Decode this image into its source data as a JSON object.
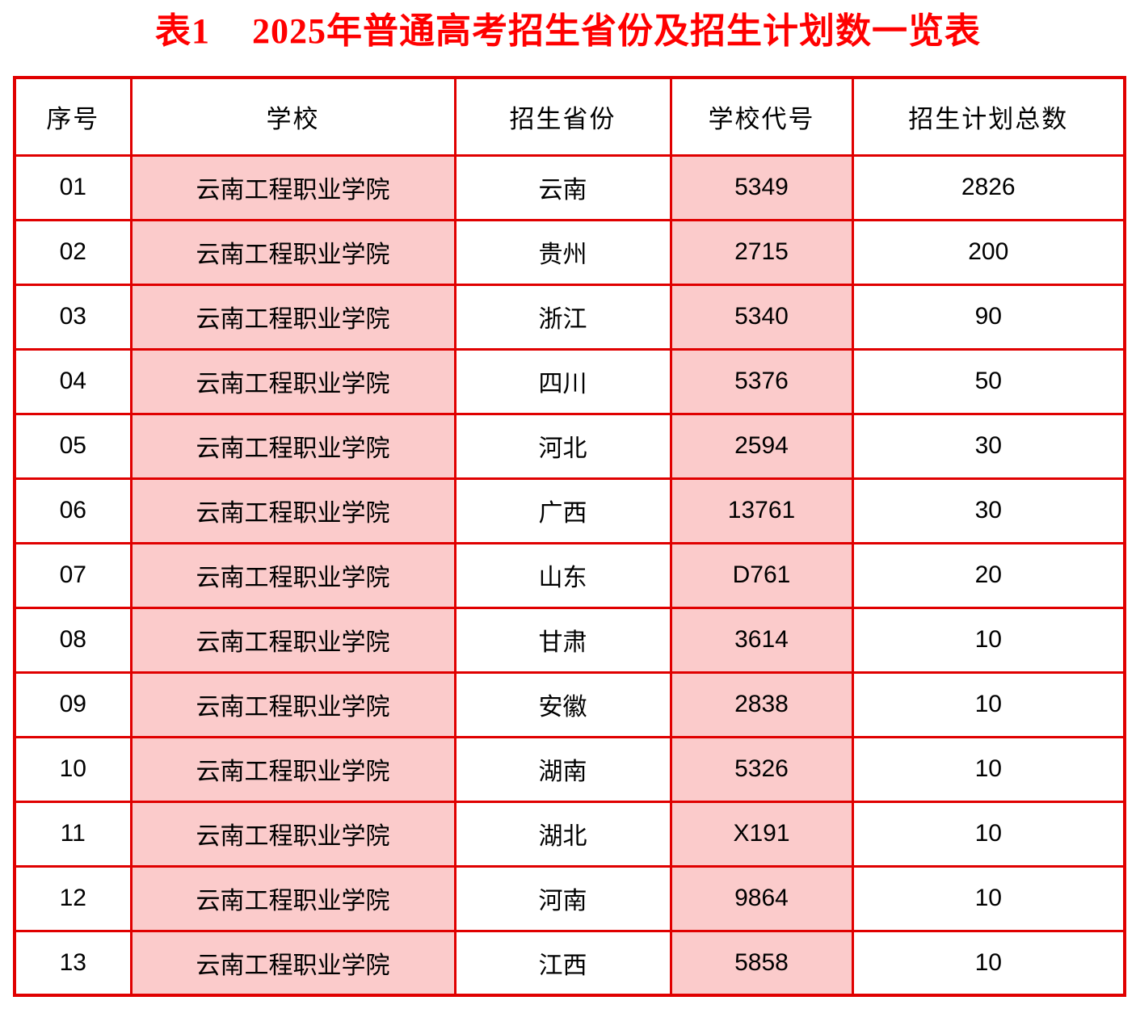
{
  "title": {
    "part1": "表1",
    "part2": "2025年普通高考招生省份及招生计划数一览表"
  },
  "colors": {
    "title_red": "#ff0000",
    "border_red": "#e00000",
    "highlight_pink": "#fbcbcb",
    "text": "#000000",
    "background": "#ffffff"
  },
  "table": {
    "headers": [
      "序号",
      "学校",
      "招生省份",
      "学校代号",
      "招生计划总数"
    ],
    "highlight_col_indices": [
      1,
      3
    ],
    "numeric_col_indices": [
      0,
      3,
      4
    ],
    "rows": [
      [
        "01",
        "云南工程职业学院",
        "云南",
        "5349",
        "2826"
      ],
      [
        "02",
        "云南工程职业学院",
        "贵州",
        "2715",
        "200"
      ],
      [
        "03",
        "云南工程职业学院",
        "浙江",
        "5340",
        "90"
      ],
      [
        "04",
        "云南工程职业学院",
        "四川",
        "5376",
        "50"
      ],
      [
        "05",
        "云南工程职业学院",
        "河北",
        "2594",
        "30"
      ],
      [
        "06",
        "云南工程职业学院",
        "广西",
        "13761",
        "30"
      ],
      [
        "07",
        "云南工程职业学院",
        "山东",
        "D761",
        "20"
      ],
      [
        "08",
        "云南工程职业学院",
        "甘肃",
        "3614",
        "10"
      ],
      [
        "09",
        "云南工程职业学院",
        "安徽",
        "2838",
        "10"
      ],
      [
        "10",
        "云南工程职业学院",
        "湖南",
        "5326",
        "10"
      ],
      [
        "11",
        "云南工程职业学院",
        "湖北",
        "X191",
        "10"
      ],
      [
        "12",
        "云南工程职业学院",
        "河南",
        "9864",
        "10"
      ],
      [
        "13",
        "云南工程职业学院",
        "江西",
        "5858",
        "10"
      ]
    ]
  }
}
